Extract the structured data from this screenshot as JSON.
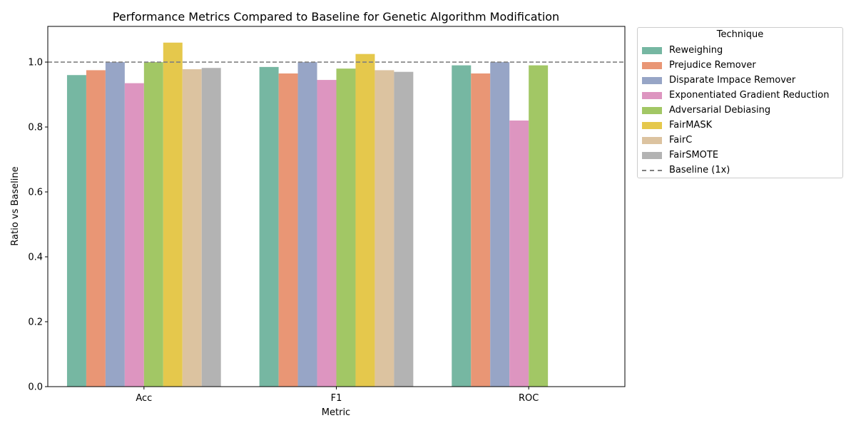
{
  "chart_data": {
    "type": "bar",
    "title": "Performance Metrics Compared to Baseline for Genetic Algorithm Modification",
    "xlabel": "Metric",
    "ylabel": "Ratio vs Baseline",
    "categories": [
      "Acc",
      "F1",
      "ROC"
    ],
    "ylim": [
      0,
      1.11
    ],
    "yticks": [
      "0.0",
      "0.2",
      "0.4",
      "0.6",
      "0.8",
      "1.0"
    ],
    "grid": false,
    "legend_title": "Technique",
    "legend_position": "outside-right",
    "baseline": {
      "value": 1.0,
      "label": "Baseline (1x)",
      "color": "#808080",
      "style": "dashed"
    },
    "series": [
      {
        "name": "Reweighing",
        "color": "#76b7a2",
        "values": [
          0.96,
          0.985,
          0.99
        ]
      },
      {
        "name": "Prejudice Remover",
        "color": "#e99675",
        "values": [
          0.975,
          0.965,
          0.965
        ]
      },
      {
        "name": "Disparate Impace Remover",
        "color": "#97a5c6",
        "values": [
          1.0,
          1.0,
          1.0
        ]
      },
      {
        "name": "Exponentiated Gradient Reduction",
        "color": "#dd95c0",
        "values": [
          0.935,
          0.945,
          0.82
        ]
      },
      {
        "name": "Adversarial Debiasing",
        "color": "#a2c765",
        "values": [
          1.0,
          0.98,
          0.99
        ]
      },
      {
        "name": "FairMASK",
        "color": "#e5c84c",
        "values": [
          1.06,
          1.025,
          null
        ]
      },
      {
        "name": "FairC",
        "color": "#dcc3a0",
        "values": [
          0.978,
          0.975,
          null
        ]
      },
      {
        "name": "FairSMOTE",
        "color": "#b3b3b3",
        "values": [
          0.982,
          0.97,
          null
        ]
      }
    ]
  }
}
